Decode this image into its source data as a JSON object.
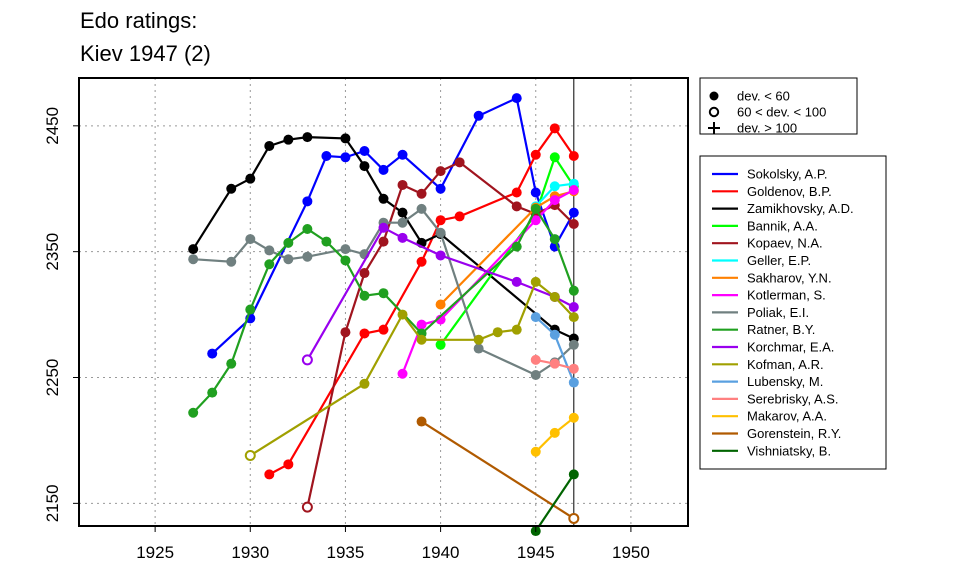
{
  "chart_data": {
    "type": "line",
    "title": [
      "Edo ratings:",
      "Kiev 1947 (2)"
    ],
    "xlim": [
      1921,
      1953
    ],
    "ylim": [
      2132,
      2488
    ],
    "x_ticks": [
      1925,
      1930,
      1935,
      1940,
      1945,
      1950
    ],
    "y_ticks": [
      2150,
      2250,
      2350,
      2450
    ],
    "grid": true,
    "reference_year": 1947,
    "legend_markers": [
      {
        "symbol": "filled",
        "label": "dev. < 60"
      },
      {
        "symbol": "open",
        "label": "60 < dev. < 100"
      },
      {
        "symbol": "plus",
        "label": "dev. > 100"
      }
    ],
    "series": [
      {
        "name": "Sokolsky, A.P.",
        "color": "#0000ff",
        "points": [
          [
            1928,
            2269,
            "f"
          ],
          [
            1930,
            2297,
            "f"
          ],
          [
            1933,
            2390,
            "f"
          ],
          [
            1934,
            2426,
            "f"
          ],
          [
            1935,
            2425,
            "f"
          ],
          [
            1936,
            2430,
            "f"
          ],
          [
            1937,
            2415,
            "f"
          ],
          [
            1938,
            2427,
            "f"
          ],
          [
            1940,
            2400,
            "f"
          ],
          [
            1942,
            2458,
            "f"
          ],
          [
            1944,
            2472,
            "f"
          ],
          [
            1945,
            2397,
            "f"
          ],
          [
            1946,
            2354,
            "f"
          ],
          [
            1947,
            2381,
            "f"
          ]
        ]
      },
      {
        "name": "Goldenov, B.P.",
        "color": "#ff0000",
        "points": [
          [
            1931,
            2173,
            "f"
          ],
          [
            1932,
            2181,
            "f"
          ],
          [
            1936,
            2285,
            "f"
          ],
          [
            1937,
            2288,
            "f"
          ],
          [
            1939,
            2342,
            "f"
          ],
          [
            1940,
            2375,
            "f"
          ],
          [
            1941,
            2378,
            "f"
          ],
          [
            1944,
            2397,
            "f"
          ],
          [
            1945,
            2427,
            "f"
          ],
          [
            1946,
            2448,
            "f"
          ],
          [
            1947,
            2426,
            "f"
          ]
        ]
      },
      {
        "name": "Zamikhovsky, A.D.",
        "color": "#000000",
        "points": [
          [
            1927,
            2352,
            "f"
          ],
          [
            1929,
            2400,
            "f"
          ],
          [
            1930,
            2408,
            "f"
          ],
          [
            1931,
            2434,
            "f"
          ],
          [
            1932,
            2439,
            "f"
          ],
          [
            1933,
            2441,
            "f"
          ],
          [
            1935,
            2440,
            "f"
          ],
          [
            1936,
            2418,
            "f"
          ],
          [
            1937,
            2392,
            "f"
          ],
          [
            1938,
            2381,
            "f"
          ],
          [
            1939,
            2357,
            "f"
          ],
          [
            1940,
            2364,
            "f"
          ],
          [
            1946,
            2288,
            "f"
          ],
          [
            1947,
            2281,
            "f"
          ]
        ]
      },
      {
        "name": "Bannik, A.A.",
        "color": "#00ff00",
        "points": [
          [
            1940,
            2276,
            "f"
          ],
          [
            1945,
            2380,
            "f"
          ],
          [
            1946,
            2425,
            "f"
          ],
          [
            1947,
            2402,
            "f"
          ]
        ]
      },
      {
        "name": "Kopaev, N.A.",
        "color": "#a0141e",
        "points": [
          [
            1933,
            2147,
            "o"
          ],
          [
            1935,
            2286,
            "f"
          ],
          [
            1936,
            2333,
            "f"
          ],
          [
            1937,
            2358,
            "f"
          ],
          [
            1938,
            2403,
            "f"
          ],
          [
            1939,
            2396,
            "f"
          ],
          [
            1940,
            2414,
            "f"
          ],
          [
            1941,
            2421,
            "f"
          ],
          [
            1944,
            2386,
            "f"
          ],
          [
            1945,
            2380,
            "f"
          ],
          [
            1946,
            2387,
            "f"
          ],
          [
            1947,
            2372,
            "f"
          ]
        ]
      },
      {
        "name": "Geller, E.P.",
        "color": "#00ffff",
        "points": [
          [
            1945,
            2386,
            "f"
          ],
          [
            1946,
            2402,
            "f"
          ],
          [
            1947,
            2404,
            "f"
          ]
        ]
      },
      {
        "name": "Sakharov, Y.N.",
        "color": "#ff8000",
        "points": [
          [
            1940,
            2308,
            "f"
          ],
          [
            1945,
            2385,
            "f"
          ],
          [
            1946,
            2394,
            "f"
          ],
          [
            1947,
            2398,
            "f"
          ]
        ]
      },
      {
        "name": "Kotlerman, S.",
        "color": "#ff00ff",
        "points": [
          [
            1938,
            2253,
            "f"
          ],
          [
            1939,
            2292,
            "f"
          ],
          [
            1940,
            2296,
            "f"
          ],
          [
            1945,
            2375,
            "f"
          ],
          [
            1946,
            2391,
            "f"
          ],
          [
            1947,
            2399,
            "f"
          ]
        ]
      },
      {
        "name": "Poliak, E.I.",
        "color": "#708080",
        "points": [
          [
            1927,
            2344,
            "f"
          ],
          [
            1929,
            2342,
            "f"
          ],
          [
            1930,
            2360,
            "f"
          ],
          [
            1931,
            2351,
            "f"
          ],
          [
            1932,
            2344,
            "f"
          ],
          [
            1933,
            2346,
            "f"
          ],
          [
            1935,
            2352,
            "f"
          ],
          [
            1936,
            2348,
            "f"
          ],
          [
            1937,
            2373,
            "f"
          ],
          [
            1938,
            2373,
            "f"
          ],
          [
            1939,
            2384,
            "f"
          ],
          [
            1940,
            2365,
            "f"
          ],
          [
            1942,
            2273,
            "f"
          ],
          [
            1945,
            2252,
            "f"
          ],
          [
            1946,
            2262,
            "f"
          ],
          [
            1947,
            2276,
            "f"
          ]
        ]
      },
      {
        "name": "Ratner, B.Y.",
        "color": "#20a020",
        "points": [
          [
            1927,
            2222,
            "f"
          ],
          [
            1928,
            2238,
            "f"
          ],
          [
            1929,
            2261,
            "f"
          ],
          [
            1930,
            2304,
            "f"
          ],
          [
            1931,
            2340,
            "f"
          ],
          [
            1932,
            2357,
            "f"
          ],
          [
            1933,
            2368,
            "f"
          ],
          [
            1934,
            2358,
            "f"
          ],
          [
            1935,
            2343,
            "f"
          ],
          [
            1936,
            2315,
            "f"
          ],
          [
            1937,
            2317,
            "f"
          ],
          [
            1939,
            2285,
            "f"
          ],
          [
            1944,
            2354,
            "f"
          ],
          [
            1945,
            2384,
            "f"
          ],
          [
            1946,
            2360,
            "f"
          ],
          [
            1947,
            2319,
            "f"
          ]
        ]
      },
      {
        "name": "Korchmar, E.A.",
        "color": "#9900ee",
        "points": [
          [
            1933,
            2264,
            "o"
          ],
          [
            1937,
            2369,
            "f"
          ],
          [
            1938,
            2361,
            "f"
          ],
          [
            1940,
            2347,
            "f"
          ],
          [
            1944,
            2326,
            "f"
          ],
          [
            1946,
            2314,
            "f"
          ],
          [
            1947,
            2306,
            "f"
          ]
        ]
      },
      {
        "name": "Kofman, A.R.",
        "color": "#a0a000",
        "points": [
          [
            1930,
            2188,
            "o"
          ],
          [
            1936,
            2245,
            "f"
          ],
          [
            1938,
            2300,
            "f"
          ],
          [
            1939,
            2280,
            "f"
          ],
          [
            1942,
            2280,
            "f"
          ],
          [
            1943,
            2286,
            "f"
          ],
          [
            1944,
            2288,
            "f"
          ],
          [
            1945,
            2326,
            "f"
          ],
          [
            1946,
            2314,
            "f"
          ],
          [
            1947,
            2298,
            "f"
          ]
        ]
      },
      {
        "name": "Lubensky, M.",
        "color": "#5aa0e0",
        "points": [
          [
            1945,
            2298,
            "f"
          ],
          [
            1946,
            2284,
            "f"
          ],
          [
            1947,
            2246,
            "f"
          ]
        ]
      },
      {
        "name": "Serebrisky, A.S.",
        "color": "#ff8080",
        "points": [
          [
            1945,
            2264,
            "f"
          ],
          [
            1946,
            2261,
            "f"
          ],
          [
            1947,
            2257,
            "f"
          ]
        ]
      },
      {
        "name": "Makarov, A.A.",
        "color": "#ffc000",
        "points": [
          [
            1945,
            2191,
            "f"
          ],
          [
            1946,
            2206,
            "f"
          ],
          [
            1947,
            2218,
            "f"
          ]
        ]
      },
      {
        "name": "Gorenstein, R.Y.",
        "color": "#b05a00",
        "points": [
          [
            1939,
            2215,
            "f"
          ],
          [
            1947,
            2138,
            "o"
          ]
        ]
      },
      {
        "name": "Vishniatsky, B.",
        "color": "#006400",
        "points": [
          [
            1945,
            2128,
            "f"
          ],
          [
            1947,
            2173,
            "f"
          ]
        ]
      }
    ]
  }
}
